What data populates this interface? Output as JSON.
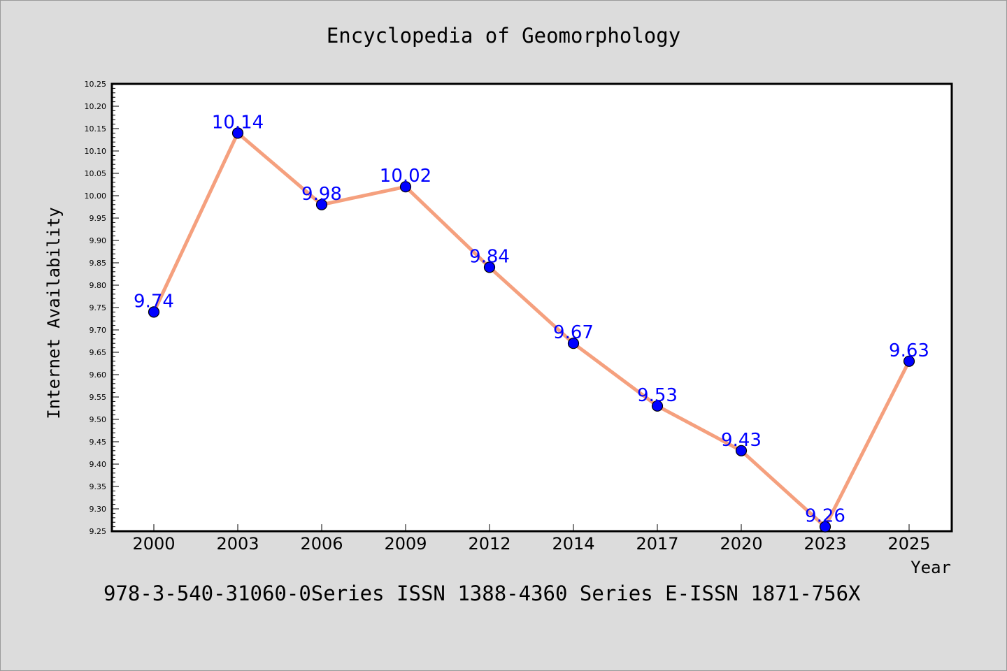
{
  "title": "Encyclopedia of Geomorphology",
  "footnote": "978-3-540-31060-0Series ISSN 1388-4360 Series E-ISSN 1871-756X",
  "colors": {
    "background": "#dcdcdc",
    "plot_background": "#ffffff",
    "line": "#f5a07e",
    "marker": "#0000ff",
    "data_label": "#0000ff"
  },
  "chart_data": {
    "type": "line",
    "title": "Encyclopedia of Geomorphology",
    "xlabel": "Year",
    "ylabel": "Internet Availability",
    "categories": [
      "2000",
      "2003",
      "2006",
      "2009",
      "2012",
      "2014",
      "2017",
      "2020",
      "2023",
      "2025"
    ],
    "series": [
      {
        "values": [
          9.74,
          10.14,
          9.98,
          10.02,
          9.84,
          9.67,
          9.53,
          9.43,
          9.26,
          9.63
        ],
        "labels": [
          "9.74",
          "10.14",
          "9.98",
          "10.02",
          "9.84",
          "9.67",
          "9.53",
          "9.43",
          "9.26",
          "9.63"
        ]
      }
    ],
    "ylim": [
      9.25,
      10.25
    ],
    "yticks": [
      "9.25",
      "9.30",
      "9.35",
      "9.40",
      "9.45",
      "9.50",
      "9.55",
      "9.60",
      "9.65",
      "9.70",
      "9.75",
      "9.80",
      "9.85",
      "9.90",
      "9.95",
      "10.00",
      "10.05",
      "10.10",
      "10.15",
      "10.20",
      "10.25"
    ],
    "grid": false,
    "legend": "none"
  }
}
